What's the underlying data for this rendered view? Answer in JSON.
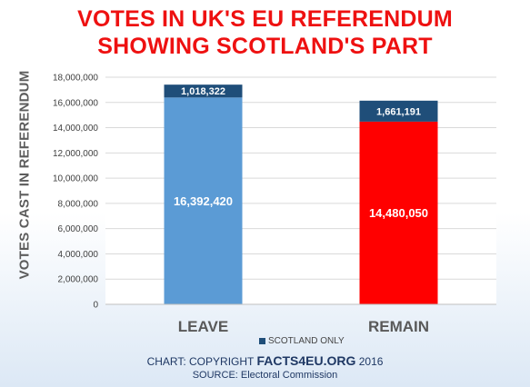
{
  "title_line1": "VOTES IN UK'S EU REFERENDUM",
  "title_line2": "SHOWING SCOTLAND'S PART",
  "legend_label": "SCOTLAND ONLY",
  "copyright_prefix": "CHART: COPYRIGHT ",
  "copyright_brand": "FACTS4EU.ORG",
  "copyright_year": " 2016",
  "source": "SOURCE: Electoral Commission",
  "colors": {
    "title": "#ee1111",
    "leave": "#5b9bd5",
    "remain": "#ff0000",
    "scotland": "#1f4e79"
  },
  "chart_data": {
    "type": "bar",
    "stacked": true,
    "title": "VOTES IN UK'S EU REFERENDUM SHOWING SCOTLAND'S PART",
    "xlabel": "",
    "ylabel": "VOTES CAST IN REFERENDUM",
    "categories": [
      "LEAVE",
      "REMAIN"
    ],
    "ylim": [
      0,
      18000000
    ],
    "yticks": [
      0,
      2000000,
      4000000,
      6000000,
      8000000,
      10000000,
      12000000,
      14000000,
      16000000,
      18000000
    ],
    "ytick_labels": [
      "0",
      "2,000,000",
      "4,000,000",
      "6,000,000",
      "8,000,000",
      "10,000,000",
      "12,000,000",
      "14,000,000",
      "16,000,000",
      "18,000,000"
    ],
    "grid": true,
    "legend_position": "bottom",
    "series": [
      {
        "values": [
          16392420,
          14480050
        ],
        "labels": [
          "16,392,420",
          "14,480,050"
        ],
        "colors": [
          "#5b9bd5",
          "#ff0000"
        ]
      },
      {
        "name": "SCOTLAND ONLY",
        "values": [
          1018322,
          1661191
        ],
        "labels": [
          "1,018,322",
          "1,661,191"
        ],
        "colors": [
          "#1f4e79",
          "#1f4e79"
        ]
      }
    ]
  }
}
